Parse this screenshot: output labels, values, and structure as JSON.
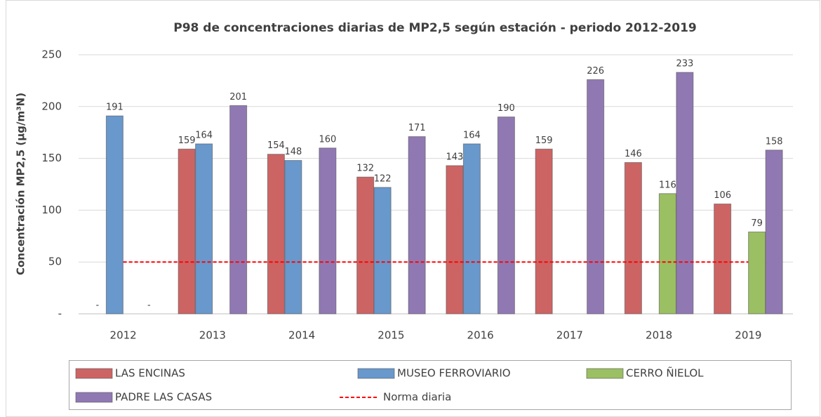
{
  "chart_data": {
    "type": "bar",
    "title": "P98 de concentraciones diarias de MP2,5 según estación - periodo 2012-2019",
    "y_label": "Concentración MP2,5 (µg/m³N)",
    "categories": [
      "2012",
      "2013",
      "2014",
      "2015",
      "2016",
      "2017",
      "2018",
      "2019"
    ],
    "series": [
      {
        "name": "LAS ENCINAS",
        "color": "#cd6464",
        "values": [
          0,
          159,
          154,
          132,
          143,
          159,
          146,
          106
        ],
        "value_labels": [
          "-",
          "159",
          "154",
          "132",
          "143",
          "159",
          "146",
          "106"
        ]
      },
      {
        "name": "MUSEO FERROVIARIO",
        "color": "#6898cc",
        "values": [
          191,
          164,
          148,
          122,
          164,
          null,
          null,
          null
        ]
      },
      {
        "name": "CERRO ÑIELOL",
        "color": "#9bbf63",
        "values": [
          null,
          null,
          null,
          null,
          null,
          null,
          116,
          79
        ]
      },
      {
        "name": "PADRE LAS CASAS",
        "color": "#9079b3",
        "values": [
          0,
          201,
          160,
          171,
          190,
          226,
          233,
          158
        ],
        "value_labels": [
          "-",
          "201",
          "160",
          "171",
          "190",
          "226",
          "233",
          "158"
        ]
      },
      {
        "name": "Norma diaria",
        "type": "line",
        "color": "#ff0000",
        "values": [
          50,
          50,
          50,
          50,
          50,
          50,
          50,
          50
        ]
      }
    ],
    "ylim": [
      0,
      250
    ],
    "yticks": [
      {
        "value": 0,
        "label": "-"
      },
      50,
      100,
      150,
      200,
      250
    ],
    "grid": true,
    "legend": "bottom"
  }
}
